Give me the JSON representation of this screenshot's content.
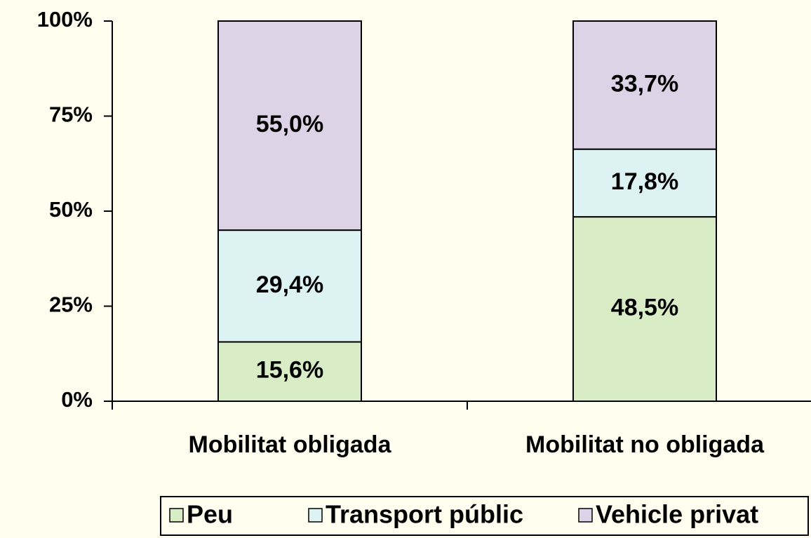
{
  "chart_data": {
    "type": "stacked_bar",
    "categories": [
      "Mobilitat obligada",
      "Mobilitat no obligada"
    ],
    "series": [
      {
        "name": "Peu",
        "color": "#d8ecc6",
        "values": [
          15.6,
          48.5
        ],
        "value_labels": [
          "15,6%",
          "48,5%"
        ]
      },
      {
        "name": "Transport públic",
        "color": "#ddf2f3",
        "values": [
          29.4,
          17.8
        ],
        "value_labels": [
          "29,4%",
          "17,8%"
        ]
      },
      {
        "name": "Vehicle privat",
        "color": "#dcd3e6",
        "values": [
          55.0,
          33.7
        ],
        "value_labels": [
          "55,0%",
          "33,7%"
        ]
      }
    ],
    "ylim": [
      0,
      100
    ],
    "yticks": [
      {
        "value": 0,
        "label": "0%"
      },
      {
        "value": 25,
        "label": "25%"
      },
      {
        "value": 50,
        "label": "50%"
      },
      {
        "value": 75,
        "label": "75%"
      },
      {
        "value": 100,
        "label": "100%"
      }
    ],
    "legend": "bottom"
  }
}
